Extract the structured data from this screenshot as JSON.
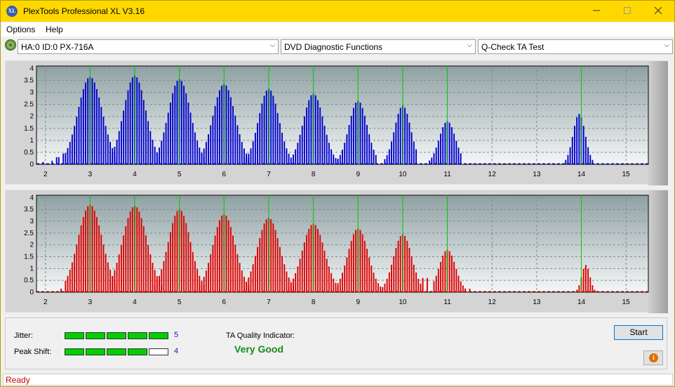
{
  "window": {
    "title": "PlexTools Professional XL V3.16",
    "icon_label": "XL",
    "minimize_icon": "minimize-icon",
    "maximize_icon": "maximize-icon",
    "close_icon": "close-icon"
  },
  "menu": {
    "items": [
      "Options",
      "Help"
    ]
  },
  "toolbar": {
    "drive": "HA:0 ID:0  PX-716A",
    "function": "DVD Diagnostic Functions",
    "test": "Q-Check TA Test"
  },
  "charts": {
    "x_ticks": [
      "2",
      "3",
      "4",
      "5",
      "6",
      "7",
      "8",
      "9",
      "10",
      "11",
      "12",
      "13",
      "14",
      "15"
    ],
    "y_ticks": [
      "4",
      "3.5",
      "3",
      "2.5",
      "2",
      "1.5",
      "1",
      "0.5",
      "0"
    ]
  },
  "chart_data": [
    {
      "type": "bar",
      "name": "top-chart",
      "color": "#0000cc",
      "xlim": [
        1.8,
        15.5
      ],
      "ylim": [
        0,
        4.1
      ],
      "markers": [
        3,
        4,
        5,
        6,
        7,
        8,
        9,
        10,
        11,
        14
      ],
      "marker_color": "#00cc00",
      "peaks": [
        {
          "center": 3.0,
          "height": 3.65,
          "from": 2.45,
          "to": 3.6
        },
        {
          "center": 4.0,
          "height": 3.7,
          "from": 3.45,
          "to": 4.55
        },
        {
          "center": 5.0,
          "height": 3.55,
          "from": 4.5,
          "to": 5.55
        },
        {
          "center": 6.0,
          "height": 3.35,
          "from": 5.5,
          "to": 6.55
        },
        {
          "center": 7.0,
          "height": 3.15,
          "from": 6.5,
          "to": 7.5
        },
        {
          "center": 8.0,
          "height": 2.95,
          "from": 7.55,
          "to": 8.5
        },
        {
          "center": 9.0,
          "height": 2.65,
          "from": 8.55,
          "to": 9.4
        },
        {
          "center": 10.0,
          "height": 2.45,
          "from": 9.6,
          "to": 10.3
        },
        {
          "center": 11.0,
          "height": 1.8,
          "from": 10.6,
          "to": 11.3
        },
        {
          "center": 13.95,
          "height": 2.1,
          "from": 13.65,
          "to": 14.25
        }
      ],
      "stray": [
        {
          "x": 1.95,
          "y": 0.1
        },
        {
          "x": 2.15,
          "y": 0.15
        },
        {
          "x": 2.25,
          "y": 0.3
        },
        {
          "x": 2.3,
          "y": 0.3
        },
        {
          "x": 2.4,
          "y": 0.45
        },
        {
          "x": 4.55,
          "y": 0.1
        },
        {
          "x": 5.45,
          "y": 0.1
        },
        {
          "x": 7.5,
          "y": 0.1
        },
        {
          "x": 8.55,
          "y": 0.2
        }
      ]
    },
    {
      "type": "bar",
      "name": "bottom-chart",
      "color": "#dd0000",
      "xlim": [
        1.8,
        15.5
      ],
      "ylim": [
        0,
        4.1
      ],
      "markers": [
        3,
        4,
        5,
        6,
        7,
        8,
        9,
        10,
        11,
        14
      ],
      "marker_color": "#00cc00",
      "peaks": [
        {
          "center": 3.0,
          "height": 3.7,
          "from": 2.45,
          "to": 3.6
        },
        {
          "center": 4.0,
          "height": 3.65,
          "from": 3.45,
          "to": 4.6
        },
        {
          "center": 5.0,
          "height": 3.5,
          "from": 4.45,
          "to": 5.55
        },
        {
          "center": 6.0,
          "height": 3.3,
          "from": 5.45,
          "to": 6.55
        },
        {
          "center": 7.0,
          "height": 3.15,
          "from": 6.45,
          "to": 7.55
        },
        {
          "center": 8.0,
          "height": 2.9,
          "from": 7.45,
          "to": 8.55
        },
        {
          "center": 9.0,
          "height": 2.7,
          "from": 8.5,
          "to": 9.5
        },
        {
          "center": 10.0,
          "height": 2.45,
          "from": 9.55,
          "to": 10.45
        },
        {
          "center": 11.0,
          "height": 1.8,
          "from": 10.7,
          "to": 11.4
        },
        {
          "center": 14.1,
          "height": 1.15,
          "from": 13.9,
          "to": 14.3
        }
      ],
      "stray": [
        {
          "x": 2.35,
          "y": 0.15
        },
        {
          "x": 3.6,
          "y": 0.2
        },
        {
          "x": 4.6,
          "y": 0.25
        },
        {
          "x": 5.55,
          "y": 0.3
        },
        {
          "x": 6.55,
          "y": 0.25
        },
        {
          "x": 10.45,
          "y": 0.6
        },
        {
          "x": 10.55,
          "y": 0.6
        },
        {
          "x": 11.5,
          "y": 0.15
        }
      ]
    }
  ],
  "results": {
    "jitter_label": "Jitter:",
    "jitter_value": "5",
    "jitter_level": 5,
    "peak_shift_label": "Peak Shift:",
    "peak_shift_value": "4",
    "peak_shift_level": 4,
    "meter_max": 5,
    "quality_label": "TA Quality Indicator:",
    "quality_value": "Very Good"
  },
  "buttons": {
    "start": "Start",
    "info_icon": "info-icon"
  },
  "status": "Ready"
}
